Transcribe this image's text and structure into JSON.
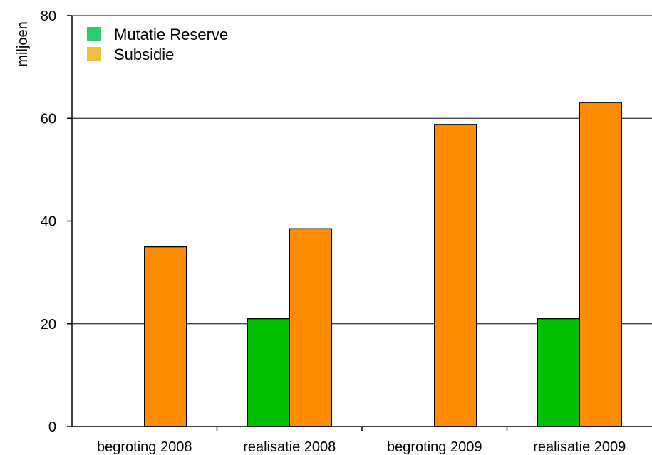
{
  "chart_data": {
    "type": "bar",
    "title": "",
    "xlabel": "",
    "ylabel": "miljoen",
    "ylim": [
      0,
      80
    ],
    "yticks": [
      0,
      20,
      40,
      60,
      80
    ],
    "grid": true,
    "legend_position": "top-left",
    "categories": [
      "begroting 2008",
      "realisatie 2008",
      "begroting 2009",
      "realisatie 2009"
    ],
    "series": [
      {
        "name": "Mutatie Reserve",
        "color": "#00c000",
        "legend_color": "#2ecc71",
        "values": [
          0,
          21,
          0,
          21
        ]
      },
      {
        "name": "Subsidie",
        "color": "#ff8c00",
        "legend_color": "#f0c040",
        "values": [
          35,
          38.5,
          58.8,
          63.1
        ]
      }
    ]
  }
}
